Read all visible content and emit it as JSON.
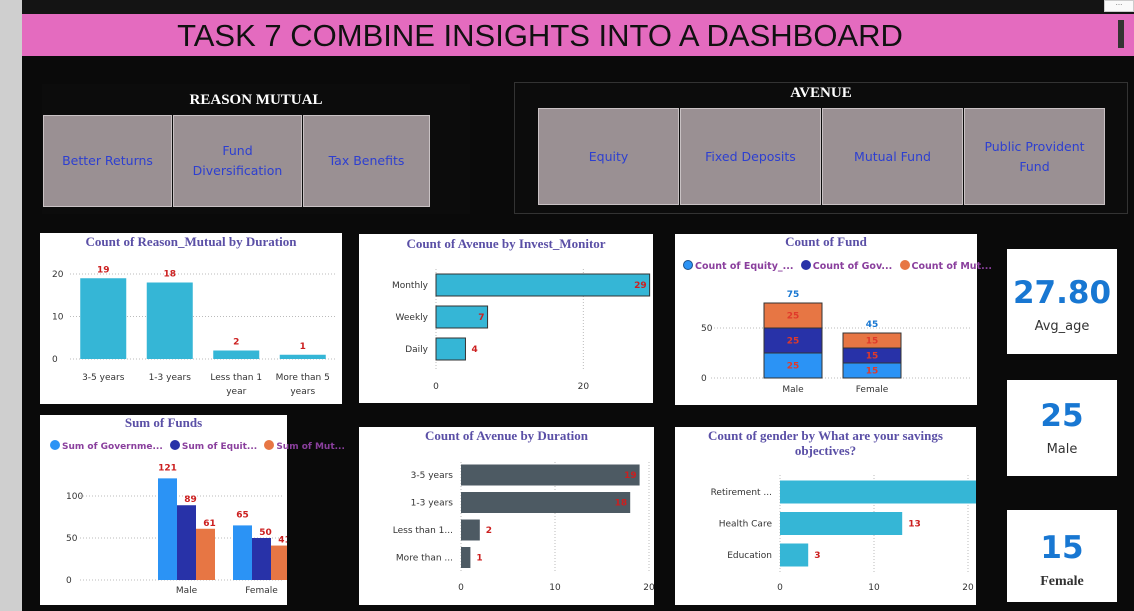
{
  "title": "TASK 7  COMBINE INSIGHTS INTO A DASHBOARD",
  "colors": {
    "title_bg": "#e46bbf",
    "bar_blue": "#35b6d6",
    "bar_dark": "#4d5a63",
    "govt": "#2b93f5",
    "equity": "#2832a8",
    "mutual": "#e77644",
    "label_red": "#cc1f1f",
    "kpi_blue": "#1877d2"
  },
  "slicer_reason": {
    "title": "REASON MUTUAL",
    "options": [
      "Better Returns",
      "Fund Diversification",
      "Tax Benefits"
    ]
  },
  "slicer_avenue": {
    "title": "AVENUE",
    "options": [
      "Equity",
      "Fixed Deposits",
      "Mutual Fund",
      "Public Provident Fund"
    ]
  },
  "kpis": [
    {
      "value": "27.80",
      "label": "Avg_age"
    },
    {
      "value": "25",
      "label": "Male"
    },
    {
      "value": "15",
      "label": "Female"
    }
  ],
  "chart_data": [
    {
      "type": "bar",
      "title": "Count of Reason_Mutual by Duration",
      "categories": [
        "3-5 years",
        "1-3 years",
        "Less than 1 year",
        "More than 5 years"
      ],
      "values": [
        19,
        18,
        2,
        1
      ],
      "yticks": [
        "0",
        "10",
        "20"
      ],
      "ylim": [
        0,
        20
      ]
    },
    {
      "type": "bar",
      "orientation": "horizontal",
      "title": "Count of Avenue by Invest_Monitor",
      "categories": [
        "Monthly",
        "Weekly",
        "Daily"
      ],
      "values": [
        29,
        7,
        4
      ],
      "xticks": [
        "0",
        "20"
      ],
      "xlim": [
        0,
        30
      ]
    },
    {
      "type": "bar",
      "stacked": true,
      "title": "Count of Fund",
      "legend": [
        "Count of Equity_...",
        "Count of Gov...",
        "Count of Mut..."
      ],
      "categories": [
        "Male",
        "Female"
      ],
      "series": [
        {
          "values": [
            25,
            15
          ]
        },
        {
          "values": [
            25,
            15
          ]
        },
        {
          "values": [
            25,
            15
          ]
        }
      ],
      "totals": [
        75,
        45
      ],
      "yticks": [
        "0",
        "50"
      ],
      "ylim": [
        0,
        80
      ]
    },
    {
      "type": "bar",
      "title": "Sum of Funds",
      "legend": [
        "Sum of Governme...",
        "Sum of Equit...",
        "Sum of Mut..."
      ],
      "categories": [
        "Male",
        "Female"
      ],
      "series": [
        {
          "values": [
            121,
            65
          ]
        },
        {
          "values": [
            89,
            50
          ]
        },
        {
          "values": [
            61,
            41
          ]
        }
      ],
      "yticks": [
        "0",
        "50",
        "100"
      ],
      "ylim": [
        0,
        125
      ]
    },
    {
      "type": "bar",
      "orientation": "horizontal",
      "title": "Count of Avenue by Duration",
      "categories": [
        "3-5 years",
        "1-3 years",
        "Less than 1...",
        "More than ..."
      ],
      "values": [
        19,
        18,
        2,
        1
      ],
      "xticks": [
        "0",
        "10",
        "20"
      ],
      "xlim": [
        0,
        20
      ]
    },
    {
      "type": "bar",
      "orientation": "horizontal",
      "title": "Count of gender by What are your savings objectives?",
      "categories": [
        "Retirement ...",
        "Health Care",
        "Education"
      ],
      "values": [
        24,
        13,
        3
      ],
      "xticks": [
        "0",
        "10",
        "20"
      ],
      "xlim": [
        0,
        25
      ]
    }
  ]
}
